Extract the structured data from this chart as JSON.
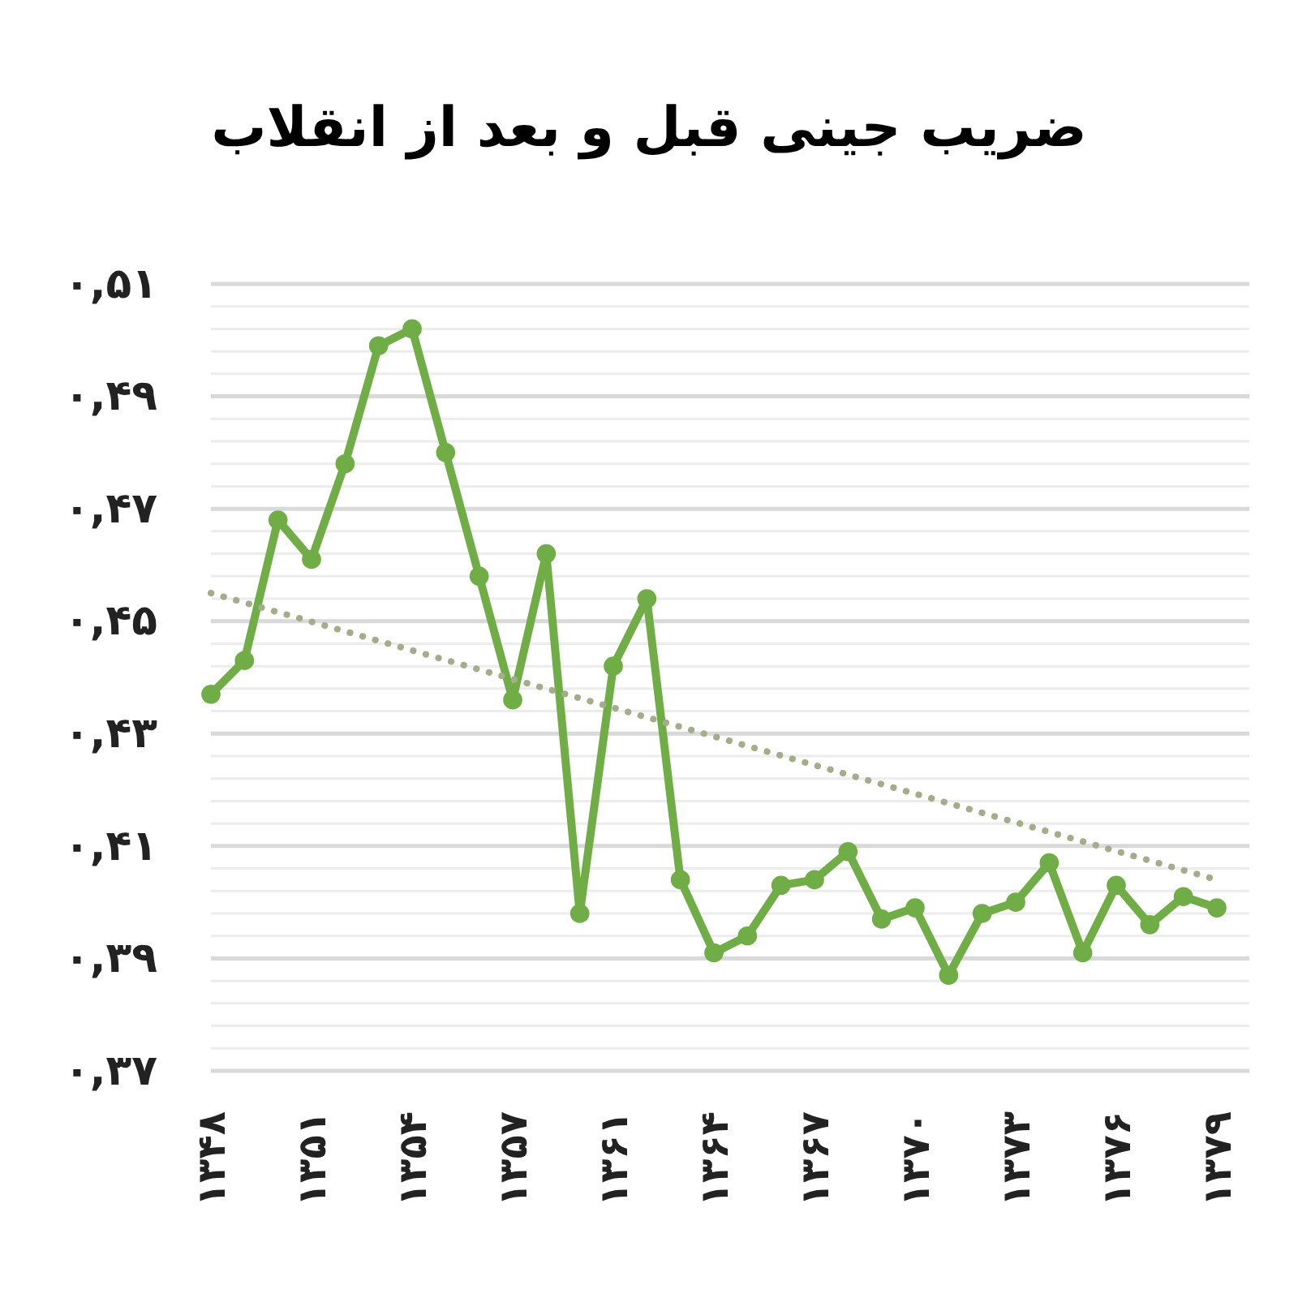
{
  "chart_data": {
    "type": "line",
    "title": "ضریب جینی قبل و بعد از انقلاب",
    "categories": [
      "۱۳۴۸",
      null,
      null,
      "۱۳۵۱",
      null,
      null,
      "۱۳۵۴",
      null,
      null,
      "۱۳۵۷",
      null,
      null,
      "۱۳۶۱",
      null,
      null,
      "۱۳۶۴",
      null,
      null,
      "۱۳۶۷",
      null,
      null,
      "۱۳۷۰",
      null,
      null,
      "۱۳۷۳",
      null,
      null,
      "۱۳۷۶",
      null,
      null,
      "۱۳۷۹"
    ],
    "series": [
      {
        "color": "#70ad47",
        "values": [
          0.437,
          0.443,
          0.468,
          0.461,
          0.478,
          0.499,
          0.502,
          0.48,
          0.458,
          0.436,
          0.462,
          0.398,
          0.442,
          0.454,
          0.404,
          0.391,
          0.394,
          0.403,
          0.404,
          0.409,
          0.397,
          0.399,
          0.387,
          0.398,
          0.4,
          0.407,
          0.391,
          0.403,
          0.396,
          0.401,
          0.399
        ],
        "marker": "circle"
      },
      {
        "type": "line",
        "color": "#a3ad8a",
        "values": [
          0.455,
          0.4533,
          0.4516,
          0.4499,
          0.4482,
          0.4465,
          0.4448,
          0.4431,
          0.4414,
          0.4397,
          0.438,
          0.4363,
          0.4346,
          0.4329,
          0.4312,
          0.4295,
          0.4278,
          0.4261,
          0.4244,
          0.4227,
          0.421,
          0.4193,
          0.4176,
          0.4159,
          0.4142,
          0.4125,
          0.4108,
          0.4091,
          0.4074,
          0.4057,
          0.404
        ],
        "line_style": "dotted",
        "marker": "none"
      }
    ],
    "ylim": [
      0.37,
      0.51
    ],
    "yticks": [
      {
        "value": 0.37,
        "label": "۰,۳۷"
      },
      {
        "value": 0.374,
        "label": null
      },
      {
        "value": 0.378,
        "label": null
      },
      {
        "value": 0.382,
        "label": null
      },
      {
        "value": 0.386,
        "label": null
      },
      {
        "value": 0.39,
        "label": "۰,۳۹"
      },
      {
        "value": 0.394,
        "label": null
      },
      {
        "value": 0.398,
        "label": null
      },
      {
        "value": 0.402,
        "label": null
      },
      {
        "value": 0.406,
        "label": null
      },
      {
        "value": 0.41,
        "label": "۰,۴۱"
      },
      {
        "value": 0.414,
        "label": null
      },
      {
        "value": 0.418,
        "label": null
      },
      {
        "value": 0.422,
        "label": null
      },
      {
        "value": 0.426,
        "label": null
      },
      {
        "value": 0.43,
        "label": "۰,۴۳"
      },
      {
        "value": 0.434,
        "label": null
      },
      {
        "value": 0.438,
        "label": null
      },
      {
        "value": 0.442,
        "label": null
      },
      {
        "value": 0.446,
        "label": null
      },
      {
        "value": 0.45,
        "label": "۰,۴۵"
      },
      {
        "value": 0.454,
        "label": null
      },
      {
        "value": 0.458,
        "label": null
      },
      {
        "value": 0.462,
        "label": null
      },
      {
        "value": 0.466,
        "label": null
      },
      {
        "value": 0.47,
        "label": "۰,۴۷"
      },
      {
        "value": 0.474,
        "label": null
      },
      {
        "value": 0.478,
        "label": null
      },
      {
        "value": 0.482,
        "label": null
      },
      {
        "value": 0.486,
        "label": null
      },
      {
        "value": 0.49,
        "label": "۰,۴۹"
      },
      {
        "value": 0.494,
        "label": null
      },
      {
        "value": 0.498,
        "label": null
      },
      {
        "value": 0.502,
        "label": null
      },
      {
        "value": 0.506,
        "label": null
      },
      {
        "value": 0.51,
        "label": "۰,۵۱"
      }
    ],
    "grid": "y"
  }
}
